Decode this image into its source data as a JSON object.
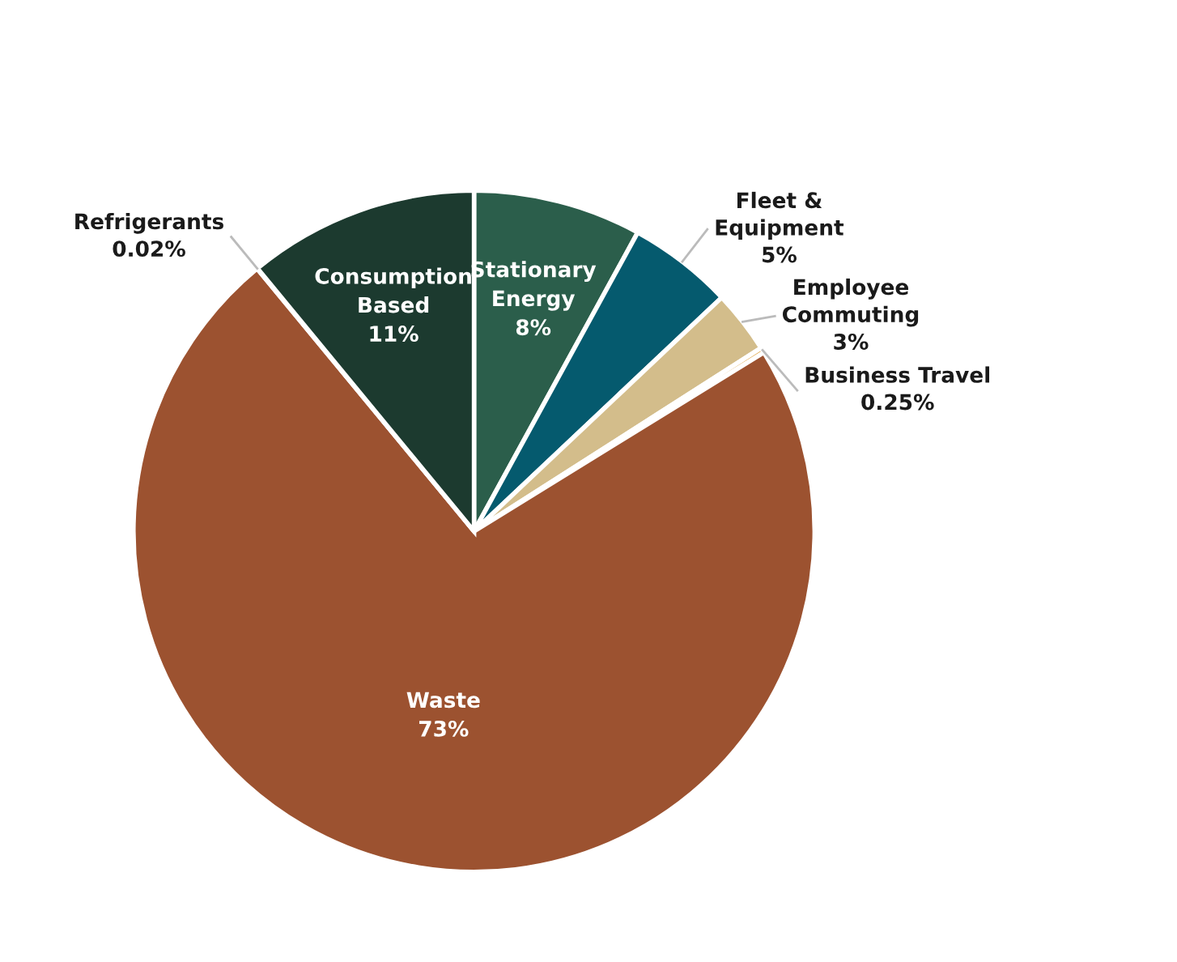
{
  "chart_data": {
    "type": "pie",
    "categories": [
      "Stationary\nEnergy",
      "Fleet &\nEquipment",
      "Employee\nCommuting",
      "Business Travel",
      "Waste",
      "Refrigerants",
      "Consumption\nBased"
    ],
    "values": [
      8,
      5,
      3,
      0.25,
      73,
      0.02,
      11
    ],
    "value_labels": [
      "8%",
      "5%",
      "3%",
      "0.25%",
      "73%",
      "0.02%",
      "11%"
    ],
    "colors": [
      "#2b5e4b",
      "#055a6e",
      "#d3bd8b",
      "#e0a84a",
      "#9c5230",
      "#7a4a2a",
      "#1c3a2f"
    ],
    "legend": false
  }
}
